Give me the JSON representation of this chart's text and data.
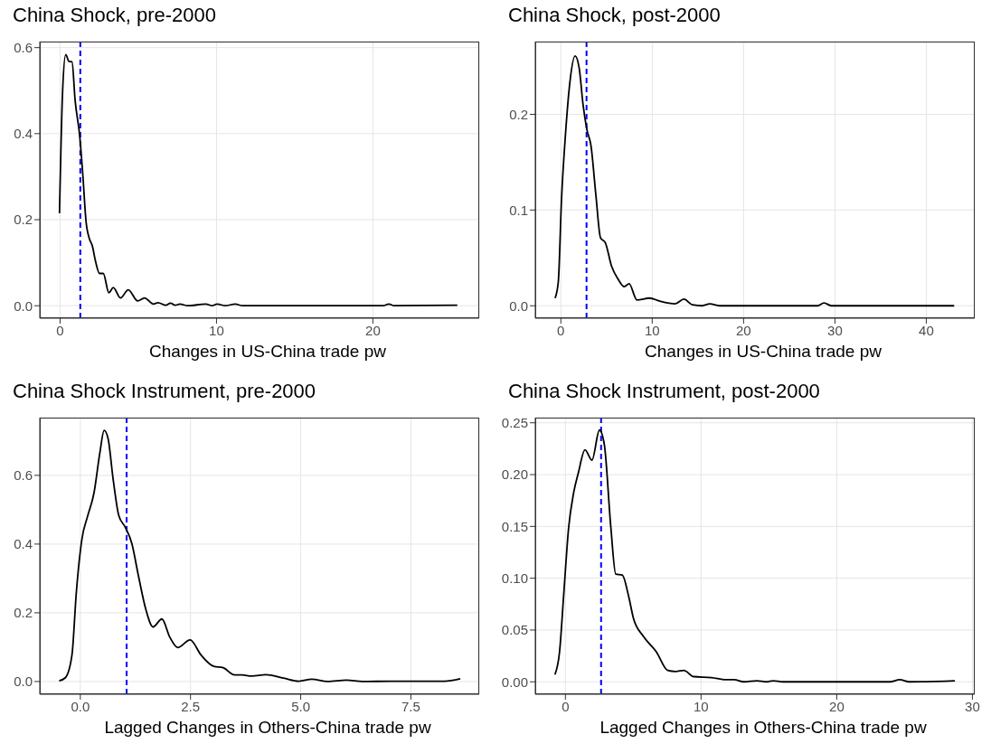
{
  "chart_data": [
    {
      "type": "line",
      "title": "China Shock, pre-2000",
      "xlabel": "Changes in US-China trade pw",
      "xlim": [
        -1.3,
        26.8
      ],
      "xticks": [
        0,
        10,
        20
      ],
      "ylim": [
        -0.029,
        0.614
      ],
      "yticks": [
        {
          "value": 0,
          "label": "0.0"
        },
        {
          "value": 0.2,
          "label": "0.2"
        },
        {
          "value": 0.4,
          "label": "0.4"
        },
        {
          "value": 0.6,
          "label": "0.6"
        }
      ],
      "grid": true,
      "marker": "none",
      "line_style": "solid",
      "series": [
        {
          "color": "#000000",
          "x": [
            -0.04,
            0.16,
            0.36,
            0.56,
            0.76,
            0.96,
            1.26,
            1.46,
            1.66,
            1.86,
            2.06,
            2.26,
            2.52,
            2.76,
            3.12,
            3.4,
            3.86,
            4.36,
            4.96,
            5.4,
            5.96,
            6.26,
            6.76,
            7.06,
            7.36,
            7.66,
            8.16,
            9.32,
            9.72,
            10.04,
            10.56,
            11.2,
            11.66,
            20.66,
            21.02,
            21.36,
            25.4
          ],
          "values": [
            0.215,
            0.5,
            0.584,
            0.568,
            0.567,
            0.477,
            0.392,
            0.3,
            0.195,
            0.157,
            0.139,
            0.104,
            0.075,
            0.075,
            0.03,
            0.042,
            0.018,
            0.037,
            0.011,
            0.018,
            0.004,
            0.007,
            0.001,
            0.006,
            0.001,
            0.004,
            0,
            0.004,
            0,
            0.004,
            0,
            0.004,
            0,
            0,
            0.004,
            0,
            0.001
          ]
        }
      ],
      "ref_lines": [
        {
          "axis": "x",
          "value": 1.29,
          "color": "#0000ff",
          "line_style": "dashed"
        }
      ]
    },
    {
      "type": "line",
      "title": "China Shock, post-2000",
      "xlabel": "Changes in US-China trade pw",
      "xlim": [
        -2.8,
        45.3
      ],
      "xticks": [
        0,
        10,
        20,
        30,
        40
      ],
      "ylim": [
        -0.013,
        0.276
      ],
      "yticks": [
        {
          "value": 0,
          "label": "0.0"
        },
        {
          "value": 0.1,
          "label": "0.1"
        },
        {
          "value": 0.2,
          "label": "0.2"
        }
      ],
      "grid": true,
      "marker": "none",
      "line_style": "solid",
      "series": [
        {
          "color": "#000000",
          "x": [
            -0.63,
            -0.28,
            0.07,
            0.52,
            0.97,
            1.56,
            2.01,
            2.43,
            2.85,
            3.3,
            3.82,
            4.34,
            4.86,
            5.56,
            6.25,
            6.94,
            7.47,
            8.33,
            9.72,
            10.76,
            12.5,
            13.47,
            14.4,
            15.45,
            16.3,
            17.36,
            28.1,
            28.8,
            29.6,
            43.05
          ],
          "values": [
            0.008,
            0.025,
            0.111,
            0.181,
            0.232,
            0.261,
            0.248,
            0.21,
            0.184,
            0.167,
            0.117,
            0.071,
            0.066,
            0.041,
            0.028,
            0.02,
            0.023,
            0.006,
            0.008,
            0.005,
            0.002,
            0.007,
            0.001,
            0,
            0.002,
            0,
            0,
            0.003,
            0,
            0
          ]
        }
      ],
      "ref_lines": [
        {
          "axis": "x",
          "value": 2.81,
          "color": "#0000ff",
          "line_style": "dashed"
        }
      ]
    },
    {
      "type": "line",
      "title": "China Shock Instrument, pre-2000",
      "xlabel": "Lagged Changes in Others-China trade pw",
      "xlim": [
        -0.92,
        9.05
      ],
      "xticks": [
        {
          "value": 0,
          "label": "0.0"
        },
        {
          "value": 2.5,
          "label": "2.5"
        },
        {
          "value": 5,
          "label": "5.0"
        },
        {
          "value": 7.5,
          "label": "7.5"
        }
      ],
      "ylim": [
        -0.037,
        0.768
      ],
      "yticks": [
        {
          "value": 0,
          "label": "0.0"
        },
        {
          "value": 0.2,
          "label": "0.2"
        },
        {
          "value": 0.4,
          "label": "0.4"
        },
        {
          "value": 0.6,
          "label": "0.6"
        }
      ],
      "grid": true,
      "marker": "none",
      "line_style": "solid",
      "series": [
        {
          "color": "#000000",
          "x": [
            -0.48,
            -0.34,
            -0.19,
            -0.09,
            0.04,
            0.16,
            0.31,
            0.44,
            0.54,
            0.63,
            0.74,
            0.87,
            1.02,
            1.17,
            1.31,
            1.49,
            1.65,
            1.85,
            2.03,
            2.21,
            2.49,
            2.74,
            3.03,
            3.24,
            3.5,
            3.67,
            3.89,
            4.21,
            4.61,
            4.96,
            5.25,
            5.61,
            6.04,
            6.4,
            7.04,
            8.26,
            8.62
          ],
          "values": [
            0.002,
            0.011,
            0.077,
            0.261,
            0.418,
            0.479,
            0.549,
            0.663,
            0.731,
            0.707,
            0.593,
            0.484,
            0.449,
            0.401,
            0.313,
            0.208,
            0.159,
            0.182,
            0.129,
            0.099,
            0.121,
            0.077,
            0.044,
            0.04,
            0.019,
            0.019,
            0.016,
            0.02,
            0.01,
            0.001,
            0.007,
            0,
            0.004,
            0,
            0.001,
            0.001,
            0.008
          ]
        }
      ],
      "ref_lines": [
        {
          "axis": "x",
          "value": 1.05,
          "color": "#0000ff",
          "line_style": "dashed"
        }
      ]
    },
    {
      "type": "line",
      "title": "China Shock Instrument, post-2000",
      "xlabel": "Lagged Changes in Others-China trade pw",
      "xlim": [
        -2.22,
        30.17
      ],
      "xticks": [
        0,
        10,
        20,
        30
      ],
      "ylim": [
        -0.012,
        0.255
      ],
      "yticks": [
        {
          "value": 0,
          "label": "0.00"
        },
        {
          "value": 0.05,
          "label": "0.05"
        },
        {
          "value": 0.1,
          "label": "0.10"
        },
        {
          "value": 0.15,
          "label": "0.15"
        },
        {
          "value": 0.2,
          "label": "0.20"
        },
        {
          "value": 0.25,
          "label": "0.25"
        }
      ],
      "grid": true,
      "marker": "none",
      "line_style": "solid",
      "series": [
        {
          "color": "#000000",
          "x": [
            -0.77,
            -0.43,
            -0.12,
            0.24,
            0.6,
            0.96,
            1.44,
            1.96,
            2.51,
            2.87,
            3.35,
            3.71,
            4.19,
            4.67,
            5.02,
            5.74,
            6.7,
            7.54,
            8.13,
            8.73,
            9.45,
            10.77,
            11.84,
            12.44,
            13.16,
            14.11,
            14.83,
            15.31,
            16.03,
            23.92,
            24.64,
            25.36,
            28.71
          ],
          "values": [
            0.007,
            0.029,
            0.085,
            0.149,
            0.182,
            0.202,
            0.224,
            0.214,
            0.243,
            0.229,
            0.149,
            0.104,
            0.103,
            0.082,
            0.061,
            0.044,
            0.029,
            0.011,
            0.01,
            0.011,
            0.005,
            0.004,
            0.002,
            0.002,
            0,
            0.001,
            0,
            0.001,
            0,
            0,
            0.002,
            0,
            0.001
          ]
        }
      ],
      "ref_lines": [
        {
          "axis": "x",
          "value": 2.63,
          "color": "#0000ff",
          "line_style": "dashed"
        }
      ]
    }
  ]
}
